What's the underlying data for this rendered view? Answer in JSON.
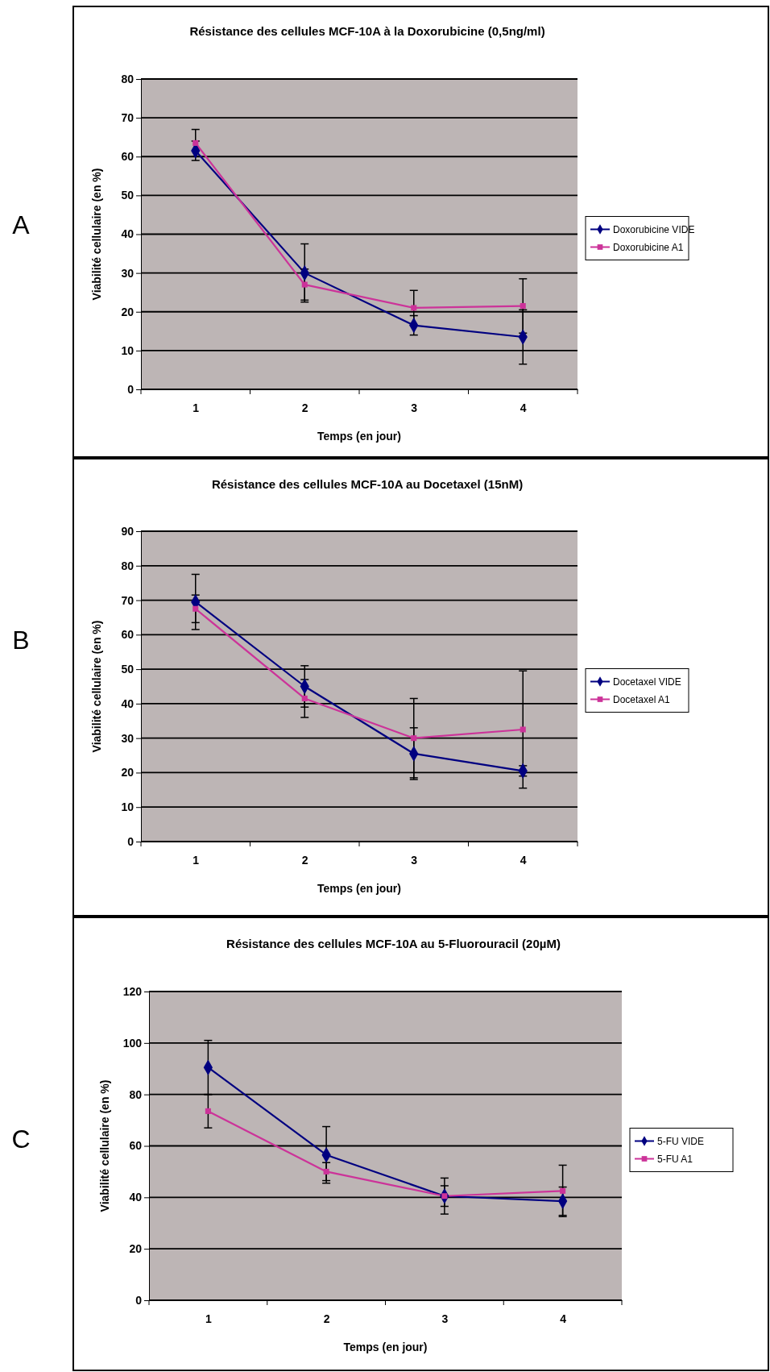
{
  "chart_data": [
    {
      "type": "line",
      "title": "Résistance des cellules MCF-10A à la Doxorubicine (0,5ng/ml)",
      "xlabel": "Temps (en jour)",
      "ylabel": "Viabilité cellulaire (en %)",
      "annotations": [
        "A"
      ],
      "categories": [
        "1",
        "2",
        "3",
        "4"
      ],
      "ylim": [
        0,
        80
      ],
      "yticks": [
        0,
        10,
        20,
        30,
        40,
        50,
        60,
        70,
        80
      ],
      "grid": "y",
      "legend": "right",
      "series": [
        {
          "name": "Doxorubicine VIDE",
          "color": "#000080",
          "marker": "diamond",
          "values": [
            61.5,
            30,
            16.5,
            13.5
          ],
          "errors": [
            2.5,
            7.5,
            2.5,
            7
          ]
        },
        {
          "name": "Doxorubicine A1",
          "color": "#cc3399",
          "marker": "square",
          "values": [
            63.5,
            27,
            21,
            21.5
          ],
          "errors": [
            3.5,
            4,
            4.5,
            7
          ]
        }
      ]
    },
    {
      "type": "line",
      "title": "Résistance des cellules MCF-10A au Docetaxel (15nM)",
      "xlabel": "Temps (en jour)",
      "ylabel": "Viabilité cellulaire (en %)",
      "annotations": [
        "B"
      ],
      "categories": [
        "1",
        "2",
        "3",
        "4"
      ],
      "ylim": [
        0,
        90
      ],
      "yticks": [
        0,
        10,
        20,
        30,
        40,
        50,
        60,
        70,
        80,
        90
      ],
      "grid": "y",
      "legend": "right",
      "series": [
        {
          "name": "Docetaxel VIDE",
          "color": "#000080",
          "marker": "diamond",
          "values": [
            69.5,
            45,
            25.5,
            20.5
          ],
          "errors": [
            8,
            6,
            7.5,
            1.5
          ]
        },
        {
          "name": "Docetaxel A1",
          "color": "#cc3399",
          "marker": "square",
          "values": [
            67.5,
            41.5,
            30,
            32.5
          ],
          "errors": [
            4,
            5.5,
            11.5,
            17
          ]
        }
      ]
    },
    {
      "type": "line",
      "title": "Résistance des cellules MCF-10A au 5-Fluorouracil (20µM)",
      "xlabel": "Temps (en jour)",
      "ylabel": "Viabilité cellulaire (en %)",
      "annotations": [
        "C"
      ],
      "categories": [
        "1",
        "2",
        "3",
        "4"
      ],
      "ylim": [
        0,
        120
      ],
      "yticks": [
        0,
        20,
        40,
        60,
        80,
        100,
        120
      ],
      "grid": "y",
      "legend": "right",
      "series": [
        {
          "name": "5-FU VIDE",
          "color": "#000080",
          "marker": "diamond",
          "values": [
            90.5,
            56.5,
            40.5,
            38.5
          ],
          "errors": [
            10.5,
            11,
            4,
            5.5
          ]
        },
        {
          "name": "5-FU A1",
          "color": "#cc3399",
          "marker": "square",
          "values": [
            73.5,
            50,
            40.5,
            42.5
          ],
          "errors": [
            6.5,
            3.5,
            7,
            10
          ]
        }
      ]
    }
  ]
}
